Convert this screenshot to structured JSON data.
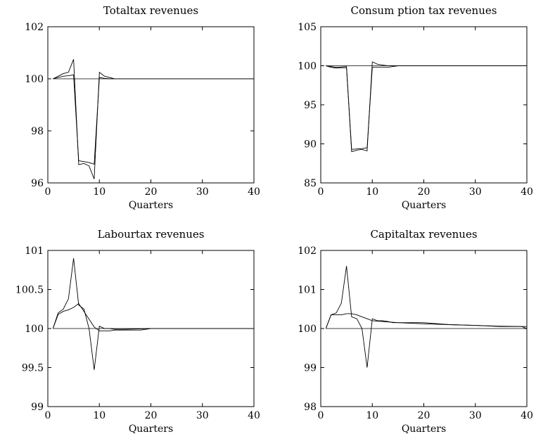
{
  "chart_data": [
    {
      "type": "line",
      "title": "Totaltax revenues",
      "xlabel": "Quarters",
      "ylabel": "",
      "xlim": [
        0,
        40
      ],
      "ylim": [
        96,
        102
      ],
      "xticks": [
        "0",
        "10",
        "20",
        "30",
        "40"
      ],
      "yticks": [
        "96",
        "98",
        "100",
        "102"
      ],
      "series": [
        {
          "x": [
            1,
            2,
            3,
            4,
            5,
            6,
            7,
            8,
            9,
            10,
            11,
            12,
            13,
            14,
            15,
            20,
            25,
            30,
            35,
            40
          ],
          "values": [
            100,
            100.1,
            100.2,
            100.25,
            100.75,
            96.7,
            96.75,
            96.65,
            96.15,
            100.25,
            100.1,
            100.05,
            100,
            100,
            100,
            100,
            100,
            100,
            100,
            100
          ]
        },
        {
          "x": [
            1,
            2,
            3,
            4,
            5,
            6,
            7,
            8,
            9,
            10,
            11,
            12,
            13,
            14,
            15,
            20,
            25,
            30,
            35,
            40
          ],
          "values": [
            100,
            100.05,
            100.1,
            100.12,
            100.15,
            96.85,
            96.82,
            96.78,
            96.72,
            100.05,
            100.02,
            100,
            100,
            100,
            100,
            100,
            100,
            100,
            100,
            100
          ]
        },
        {
          "x": [
            1,
            40
          ],
          "values": [
            100,
            100
          ]
        }
      ]
    },
    {
      "type": "line",
      "title": "Consum ption tax revenues",
      "xlabel": "Quarters",
      "ylabel": "",
      "xlim": [
        0,
        40
      ],
      "ylim": [
        85,
        105
      ],
      "xticks": [
        "0",
        "10",
        "20",
        "30",
        "40"
      ],
      "yticks": [
        "85",
        "90",
        "95",
        "100",
        "105"
      ],
      "series": [
        {
          "x": [
            1,
            2,
            3,
            4,
            5,
            6,
            7,
            8,
            9,
            10,
            11,
            12,
            13,
            14,
            15,
            20,
            25,
            30,
            35,
            40
          ],
          "values": [
            100,
            99.9,
            99.8,
            99.85,
            99.9,
            89,
            89.2,
            89.3,
            89.1,
            100.5,
            100.2,
            100.1,
            100,
            100,
            100,
            100,
            100,
            100,
            100,
            100
          ]
        },
        {
          "x": [
            1,
            2,
            3,
            4,
            5,
            6,
            7,
            8,
            9,
            10,
            11,
            12,
            13,
            14,
            15,
            20,
            25,
            30,
            35,
            40
          ],
          "values": [
            100,
            99.8,
            99.7,
            99.75,
            99.75,
            89.3,
            89.35,
            89.4,
            89.5,
            99.8,
            99.8,
            99.8,
            99.8,
            99.9,
            100,
            100,
            100,
            100,
            100,
            100
          ]
        },
        {
          "x": [
            1,
            40
          ],
          "values": [
            100,
            100
          ]
        }
      ]
    },
    {
      "type": "line",
      "title": "Labourtax revenues",
      "xlabel": "Quarters",
      "ylabel": "",
      "xlim": [
        0,
        40
      ],
      "ylim": [
        99,
        101
      ],
      "xticks": [
        "0",
        "10",
        "20",
        "30",
        "40"
      ],
      "yticks": [
        "99",
        "99.5",
        "100",
        "100.5",
        "101"
      ],
      "series": [
        {
          "x": [
            1,
            2,
            3,
            4,
            5,
            6,
            7,
            8,
            9,
            10,
            11,
            12,
            13,
            14,
            15,
            20,
            25,
            30,
            35,
            40
          ],
          "values": [
            100,
            100.2,
            100.25,
            100.38,
            100.9,
            100.3,
            100.25,
            100,
            99.47,
            100.03,
            100,
            100,
            99.99,
            99.99,
            99.99,
            100,
            100,
            100,
            100,
            100
          ]
        },
        {
          "x": [
            1,
            2,
            3,
            4,
            5,
            6,
            7,
            8,
            9,
            10,
            11,
            12,
            13,
            14,
            15,
            18,
            20,
            25,
            30,
            35,
            40
          ],
          "values": [
            100,
            100.18,
            100.22,
            100.24,
            100.27,
            100.32,
            100.22,
            100.12,
            100.02,
            99.97,
            99.97,
            99.97,
            99.98,
            99.98,
            99.98,
            99.98,
            100,
            100,
            100,
            100,
            100
          ]
        },
        {
          "x": [
            1,
            40
          ],
          "values": [
            100,
            100
          ]
        }
      ]
    },
    {
      "type": "line",
      "title": "Capitaltax revenues",
      "xlabel": "Quarters",
      "ylabel": "",
      "xlim": [
        0,
        40
      ],
      "ylim": [
        98,
        102
      ],
      "xticks": [
        "0",
        "10",
        "20",
        "30",
        "40"
      ],
      "yticks": [
        "98",
        "99",
        "100",
        "101",
        "102"
      ],
      "series": [
        {
          "x": [
            1,
            2,
            3,
            4,
            5,
            6,
            7,
            8,
            9,
            10,
            11,
            12,
            13,
            14,
            15,
            20,
            25,
            30,
            35,
            40
          ],
          "values": [
            100,
            100.35,
            100.4,
            100.65,
            101.6,
            100.3,
            100.25,
            100,
            99,
            100.25,
            100.2,
            100.2,
            100.18,
            100.15,
            100.15,
            100.15,
            100.1,
            100.08,
            100.06,
            100.05
          ]
        },
        {
          "x": [
            1,
            2,
            3,
            4,
            5,
            6,
            7,
            8,
            9,
            10,
            12,
            15,
            20,
            25,
            30,
            35,
            39,
            40
          ],
          "values": [
            100,
            100.35,
            100.35,
            100.35,
            100.38,
            100.38,
            100.35,
            100.3,
            100.25,
            100.2,
            100.18,
            100.15,
            100.12,
            100.1,
            100.08,
            100.05,
            100.05,
            100
          ]
        },
        {
          "x": [
            1,
            40
          ],
          "values": [
            100,
            100
          ]
        }
      ]
    }
  ]
}
